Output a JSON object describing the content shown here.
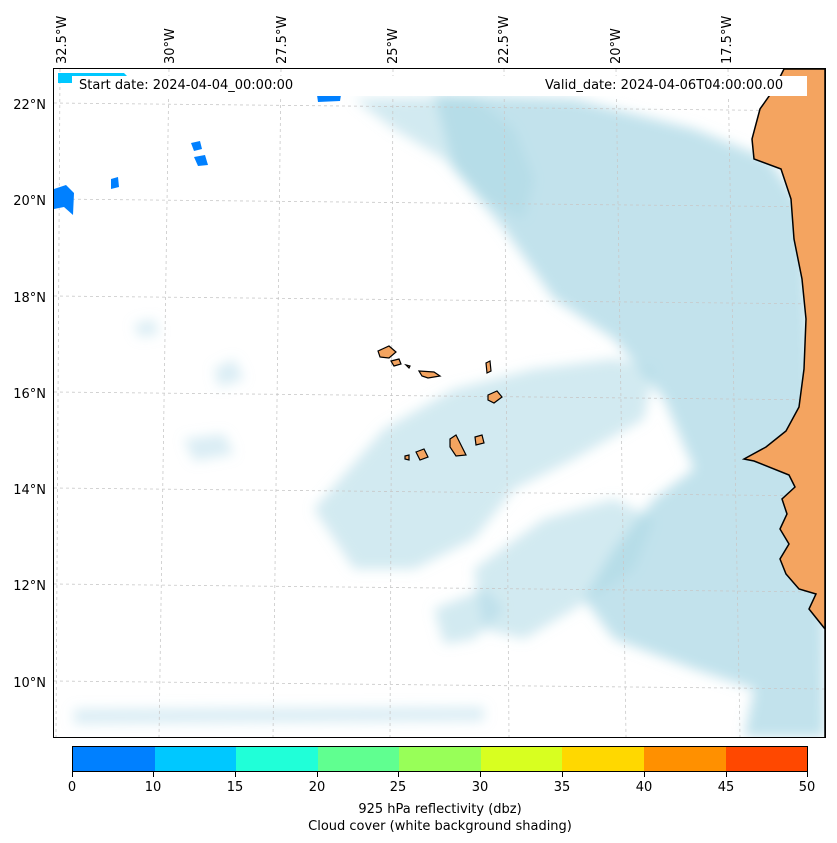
{
  "header": {
    "start_date": "Start date: 2024-04-04_00:00:00",
    "valid_date": "Valid_date: 2024-04-06T04:00:00.00"
  },
  "map": {
    "longitude_labels": [
      "32.5°W",
      "30°W",
      "27.5°W",
      "25°W",
      "22.5°W",
      "20°W",
      "17.5°W"
    ],
    "latitude_labels": [
      "22°N",
      "20°N",
      "18°N",
      "16°N",
      "14°N",
      "12°N",
      "10°N"
    ],
    "colors": {
      "land": "#f4a460",
      "cloud": "#add8e6",
      "reflectivity_low": "#0080ff",
      "coastline": "#000000",
      "gridline": "#c8c8c8"
    }
  },
  "colorbar": {
    "tick_labels": [
      "0",
      "10",
      "15",
      "20",
      "25",
      "30",
      "35",
      "40",
      "45",
      "50"
    ],
    "segment_colors": [
      "#0080ff",
      "#00c8ff",
      "#20ffd8",
      "#60ff90",
      "#98ff58",
      "#d8ff20",
      "#ffd800",
      "#ff9000",
      "#ff4800"
    ],
    "label_line1": "925 hPa reflectivity (dbz)",
    "label_line2": "Cloud cover (white background shading)"
  }
}
